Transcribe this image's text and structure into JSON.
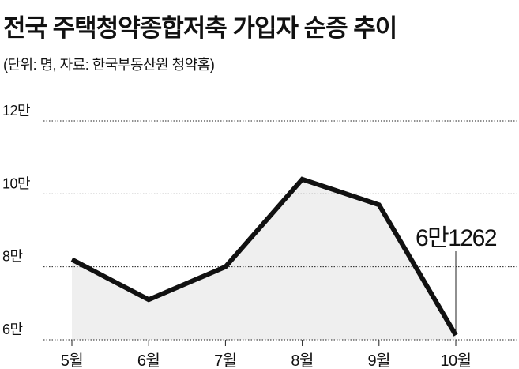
{
  "chart_data": {
    "type": "line",
    "title": "전국 주택청약종합저축 가입자 순증 추이",
    "subtitle": "(단위: 명, 자료: 한국부동산원 청약홈)",
    "categories": [
      "5월",
      "6월",
      "7월",
      "8월",
      "9월",
      "10월"
    ],
    "values": [
      82000,
      71000,
      80000,
      104000,
      97000,
      61262
    ],
    "value_labels": [
      null,
      null,
      null,
      null,
      null,
      "6만1262"
    ],
    "color": "#111111",
    "area_color": "#efefef",
    "ylim": [
      60000,
      120000
    ],
    "yticks": [
      {
        "value": 60000,
        "label": "6만"
      },
      {
        "value": 80000,
        "label": "8만"
      },
      {
        "value": 100000,
        "label": "10만"
      },
      {
        "value": 120000,
        "label": "12만"
      }
    ],
    "grid": true
  }
}
